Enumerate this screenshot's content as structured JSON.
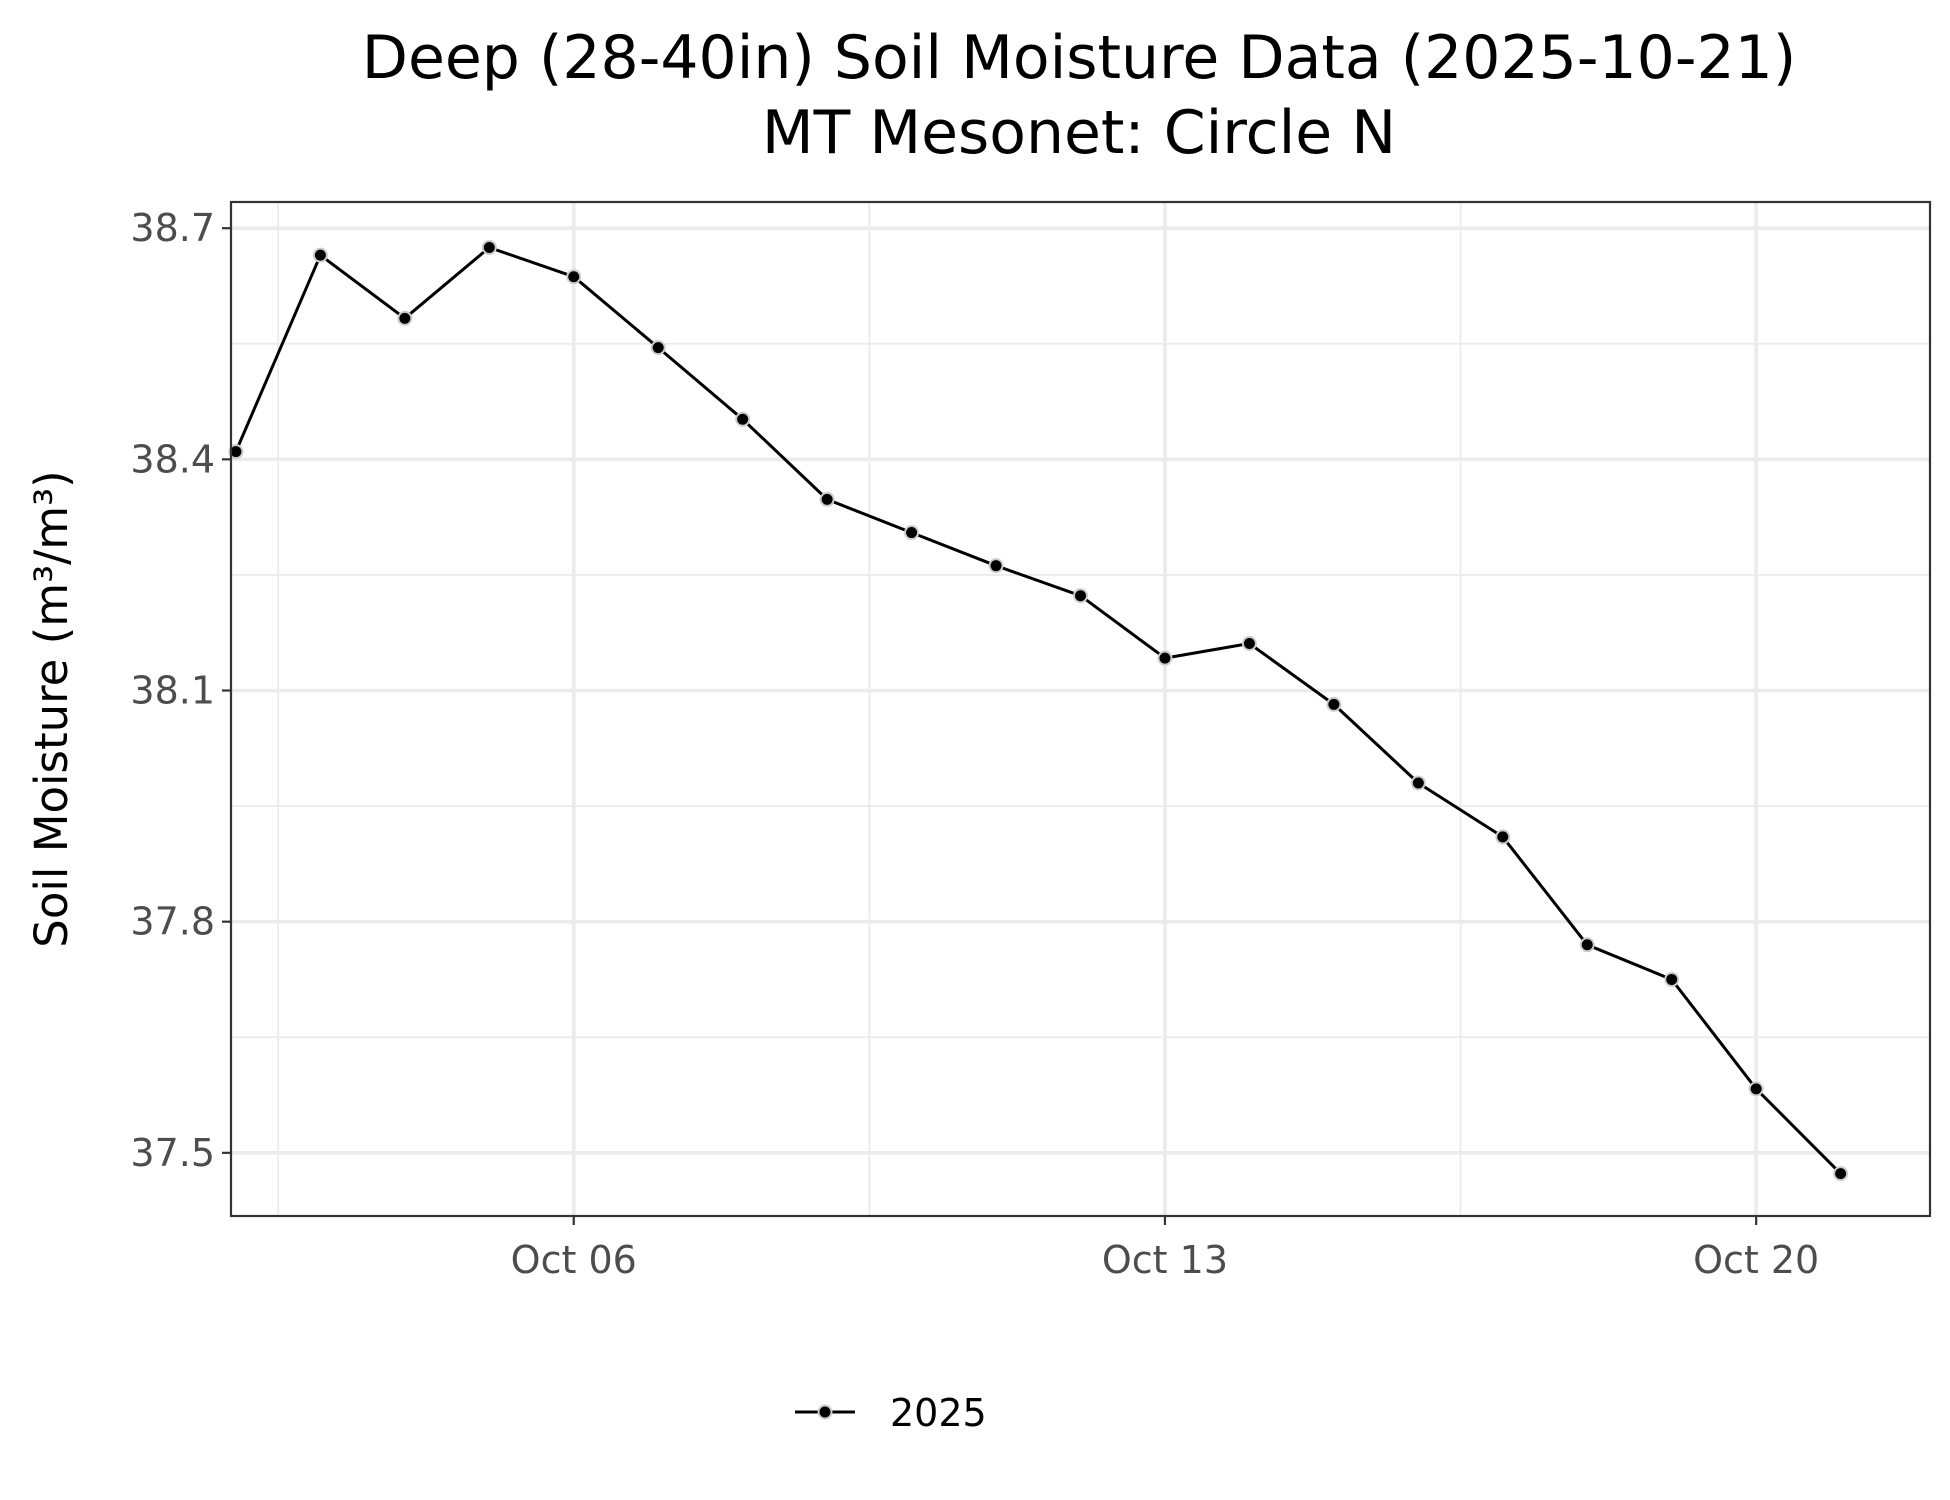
{
  "chart_data": {
    "type": "line",
    "title": "Deep (28-40in) Soil Moisture Data (2025-10-21)",
    "subtitle": "MT Mesonet: Circle N",
    "xlabel": "",
    "ylabel": "Soil Moisture (m³/m³)",
    "x": [
      "2025-10-02",
      "2025-10-03",
      "2025-10-04",
      "2025-10-05",
      "2025-10-06",
      "2025-10-07",
      "2025-10-08",
      "2025-10-09",
      "2025-10-10",
      "2025-10-11",
      "2025-10-12",
      "2025-10-13",
      "2025-10-14",
      "2025-10-15",
      "2025-10-16",
      "2025-10-17",
      "2025-10-18",
      "2025-10-19",
      "2025-10-20",
      "2025-10-21"
    ],
    "series": [
      {
        "name": "2025",
        "color": "#000000",
        "values": [
          38.41,
          38.665,
          38.583,
          38.675,
          38.637,
          38.545,
          38.452,
          38.348,
          38.305,
          38.262,
          38.223,
          38.142,
          38.161,
          38.082,
          37.98,
          37.91,
          37.77,
          37.725,
          37.583,
          37.473
        ]
      }
    ],
    "xlim": [
      "2025-10-01T22:36",
      "2025-10-22T01:24"
    ],
    "ylim": [
      37.418,
      38.734
    ],
    "x_ticks": [
      {
        "value": "2025-10-06",
        "label": "Oct 06"
      },
      {
        "value": "2025-10-13",
        "label": "Oct 13"
      },
      {
        "value": "2025-10-20",
        "label": "Oct 20"
      }
    ],
    "x_minor_ticks": [
      "2025-10-02T12:00",
      "2025-10-09T12:00",
      "2025-10-16T12:00"
    ],
    "y_ticks": [
      {
        "value": 37.5,
        "label": "37.5"
      },
      {
        "value": 37.8,
        "label": "37.8"
      },
      {
        "value": 38.1,
        "label": "38.1"
      },
      {
        "value": 38.4,
        "label": "38.4"
      },
      {
        "value": 38.7,
        "label": "38.7"
      }
    ],
    "y_minor_ticks": [
      37.65,
      37.95,
      38.25,
      38.55
    ],
    "grid": true,
    "legend": {
      "position": "bottom",
      "entries": [
        "2025"
      ]
    },
    "colors": {
      "background": "#ffffff",
      "grid": "#ebebeb",
      "panel_border": "#333333",
      "point_outline": "#cccccc"
    }
  }
}
